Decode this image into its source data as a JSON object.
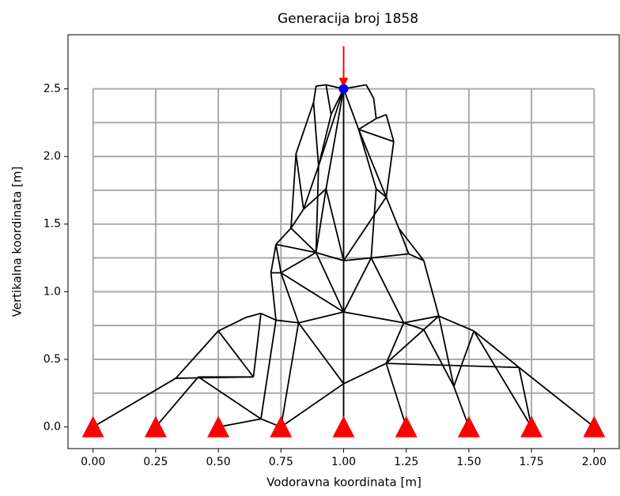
{
  "chart_data": {
    "type": "truss",
    "title": "Generacija broj 1858",
    "xlabel": "Vodoravna koordinata [m]",
    "ylabel": "Vertikalna koordinata [m]",
    "xlim": [
      -0.1,
      2.1
    ],
    "ylim": [
      -0.16,
      2.9
    ],
    "xticks": [
      {
        "value": 0,
        "label": "0.00"
      },
      {
        "value": 0.25,
        "label": "0.25"
      },
      {
        "value": 0.5,
        "label": "0.50"
      },
      {
        "value": 0.75,
        "label": "0.75"
      },
      {
        "value": 1,
        "label": "1.00"
      },
      {
        "value": 1.25,
        "label": "1.25"
      },
      {
        "value": 1.5,
        "label": "1.50"
      },
      {
        "value": 1.75,
        "label": "1.75"
      },
      {
        "value": 2,
        "label": "2.00"
      }
    ],
    "yticks": [
      {
        "value": 0,
        "label": "0.0"
      },
      0.5,
      {
        "value": 1,
        "label": "1.0"
      },
      1.5,
      {
        "value": 2,
        "label": "2.0"
      },
      2.5
    ],
    "ground_x": [
      0,
      0.25,
      0.5,
      0.75,
      1,
      1.25,
      1.5,
      1.75,
      2
    ],
    "ground_y": [
      0.25,
      0.5,
      0.75,
      1,
      1.25,
      1.5,
      1.75,
      2,
      2.25,
      2.5
    ],
    "grid_color": "#aaaaaa",
    "member_color": "#000000",
    "support_color": "#ff0000",
    "load_color": "#ff0000",
    "load_node_color": "#0000ff",
    "nodes": {
      "x": [
        0,
        0.25,
        0.5,
        0.75,
        1,
        1.25,
        1.5,
        1.75,
        2,
        0.33,
        0.42,
        0.5,
        0.61,
        0.64,
        0.67,
        0.67,
        0.73,
        0.71,
        0.73,
        0.75,
        0.89,
        0.82,
        1,
        1,
        1,
        1.11,
        1.17,
        1.24,
        1.32,
        1.38,
        1.44,
        1.52,
        1.7,
        1.32,
        1.26,
        1.22,
        1.17,
        1.2,
        0.79,
        0.84,
        0.81,
        0.88,
        0.9,
        0.93,
        0.95,
        1,
        1.09,
        1.12,
        1.13,
        1.17,
        1.06,
        0.93,
        0.89,
        1.13
      ],
      "y": [
        0,
        0,
        0,
        0,
        0,
        0,
        0,
        0,
        0,
        0.36,
        0.37,
        0.71,
        0.81,
        0.37,
        0.06,
        0.84,
        0.79,
        1.14,
        1.35,
        1.14,
        1.29,
        0.77,
        0.85,
        0.32,
        1.23,
        1.25,
        0.47,
        0.77,
        0.72,
        0.82,
        0.3,
        0.71,
        0.44,
        1.23,
        1.28,
        1.47,
        1.7,
        2.11,
        1.47,
        1.61,
        2.02,
        2.4,
        1.93,
        2.53,
        2.31,
        2.5,
        2.53,
        2.43,
        2.28,
        2.31,
        2.2,
        1.76,
        2.52,
        1.76
      ]
    },
    "members": [
      [
        0,
        9
      ],
      [
        9,
        11
      ],
      [
        9,
        13
      ],
      [
        1,
        10
      ],
      [
        10,
        14
      ],
      [
        10,
        13
      ],
      [
        11,
        12
      ],
      [
        11,
        13
      ],
      [
        12,
        15
      ],
      [
        13,
        15
      ],
      [
        14,
        2
      ],
      [
        14,
        3
      ],
      [
        14,
        16
      ],
      [
        15,
        16
      ],
      [
        16,
        21
      ],
      [
        16,
        17
      ],
      [
        17,
        18
      ],
      [
        18,
        19
      ],
      [
        17,
        19
      ],
      [
        19,
        20
      ],
      [
        18,
        20
      ],
      [
        19,
        21
      ],
      [
        3,
        21
      ],
      [
        21,
        22
      ],
      [
        21,
        23
      ],
      [
        3,
        23
      ],
      [
        19,
        22
      ],
      [
        20,
        22
      ],
      [
        20,
        24
      ],
      [
        22,
        24
      ],
      [
        22,
        23
      ],
      [
        4,
        23
      ],
      [
        22,
        27
      ],
      [
        23,
        26
      ],
      [
        24,
        25
      ],
      [
        22,
        25
      ],
      [
        25,
        27
      ],
      [
        25,
        34
      ],
      [
        26,
        27
      ],
      [
        26,
        5
      ],
      [
        26,
        28
      ],
      [
        27,
        28
      ],
      [
        27,
        29
      ],
      [
        28,
        29
      ],
      [
        29,
        33
      ],
      [
        33,
        34
      ],
      [
        28,
        30
      ],
      [
        29,
        30
      ],
      [
        30,
        6
      ],
      [
        30,
        31
      ],
      [
        31,
        32
      ],
      [
        32,
        8
      ],
      [
        32,
        7
      ],
      [
        31,
        7
      ],
      [
        29,
        31
      ],
      [
        26,
        32
      ],
      [
        34,
        35
      ],
      [
        35,
        36
      ],
      [
        36,
        37
      ],
      [
        33,
        35
      ],
      [
        38,
        18
      ],
      [
        38,
        39
      ],
      [
        38,
        20
      ],
      [
        39,
        40
      ],
      [
        39,
        42
      ],
      [
        40,
        41
      ],
      [
        41,
        42
      ],
      [
        41,
        52
      ],
      [
        52,
        43
      ],
      [
        43,
        44
      ],
      [
        42,
        44
      ],
      [
        44,
        45
      ],
      [
        43,
        45
      ],
      [
        45,
        46
      ],
      [
        46,
        47
      ],
      [
        47,
        48
      ],
      [
        48,
        49
      ],
      [
        49,
        37
      ],
      [
        45,
        50
      ],
      [
        50,
        37
      ],
      [
        50,
        36
      ],
      [
        45,
        51
      ],
      [
        51,
        39
      ],
      [
        51,
        20
      ],
      [
        51,
        24
      ],
      [
        45,
        24
      ],
      [
        24,
        36
      ],
      [
        50,
        53
      ],
      [
        53,
        36
      ],
      [
        53,
        25
      ],
      [
        45,
        42
      ],
      [
        42,
        20
      ],
      [
        48,
        50
      ],
      [
        40,
        38
      ]
    ],
    "supports": [
      0,
      1,
      2,
      3,
      4,
      5,
      6,
      7,
      8
    ],
    "load_node": 45
  }
}
